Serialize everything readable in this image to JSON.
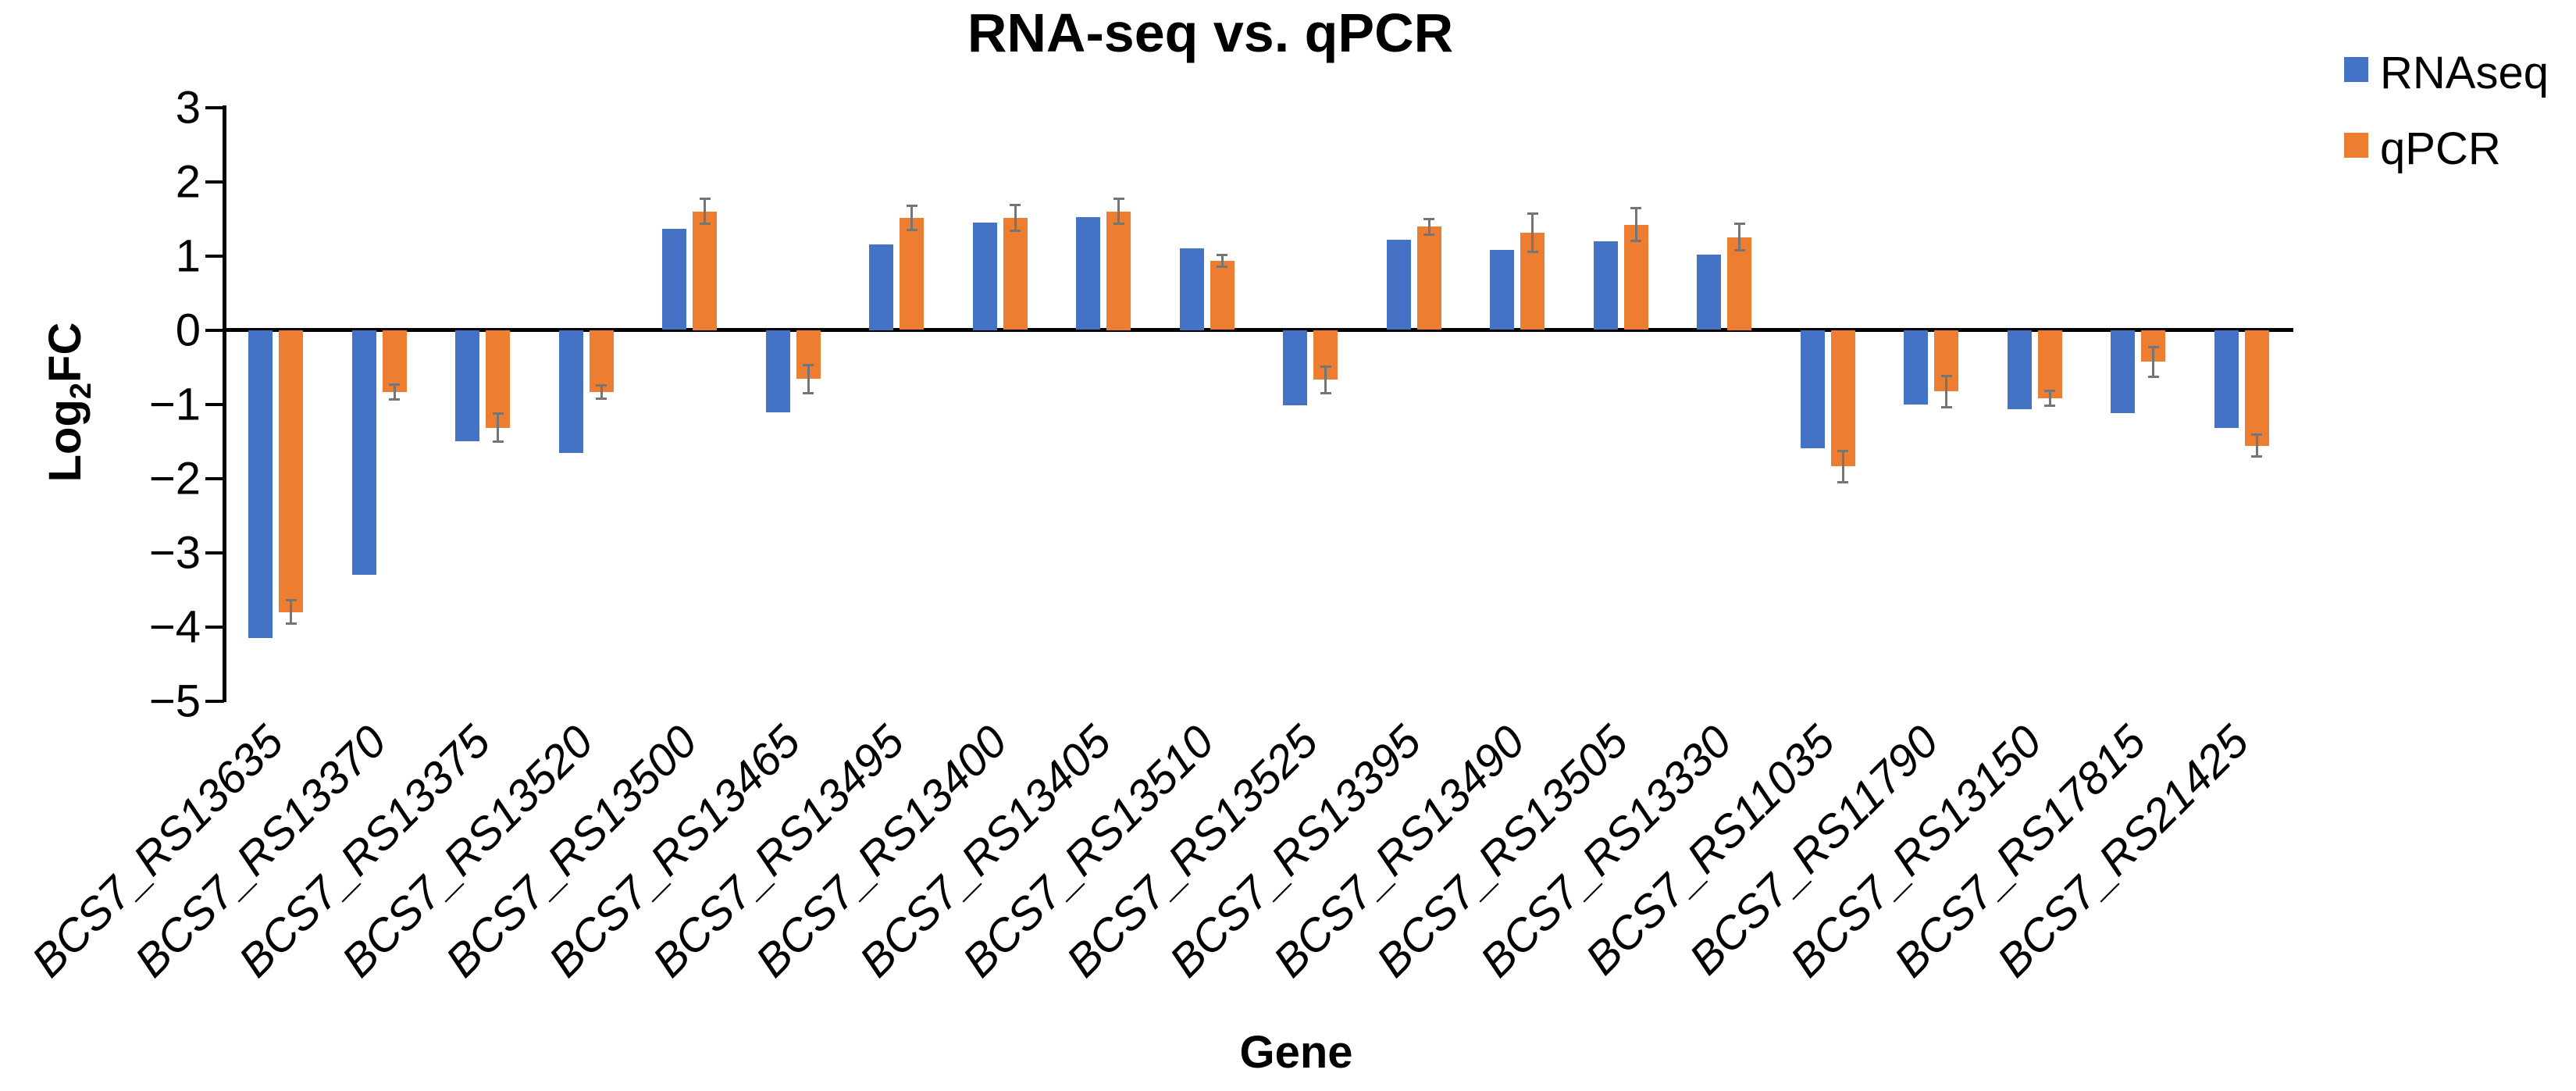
{
  "page": {
    "background": "#ffffff"
  },
  "chart_data": {
    "type": "bar",
    "title": "RNA-seq vs. qPCR",
    "xlabel": "Gene",
    "ylabel": {
      "text": "Log2FC",
      "main": "Log",
      "sub": "2",
      "tail": "FC"
    },
    "ylim": [
      -5,
      3
    ],
    "yticks": [
      3,
      2,
      1,
      0,
      -1,
      -2,
      -3,
      -4,
      -5
    ],
    "grid": false,
    "legend_position": "top-right",
    "axis_color": "#000000",
    "error_bar_color": "#757575",
    "categories": [
      "BCS7_RS13635",
      "BCS7_RS13370",
      "BCS7_RS13375",
      "BCS7_RS13520",
      "BCS7_RS13500",
      "BCS7_RS13465",
      "BCS7_RS13495",
      "BCS7_RS13400",
      "BCS7_RS13405",
      "BCS7_RS13510",
      "BCS7_RS13525",
      "BCS7_RS13395",
      "BCS7_RS13490",
      "BCS7_RS13505",
      "BCS7_RS13330",
      "BCS7_RS11035",
      "BCS7_RS11790",
      "BCS7_RS13150",
      "BCS7_RS17815",
      "BCS7_RS21425"
    ],
    "series": [
      {
        "name": "RNAseq",
        "color": "#4472C4",
        "values": [
          -4.15,
          -3.3,
          -1.5,
          -1.66,
          1.36,
          -1.11,
          1.15,
          1.45,
          1.52,
          1.1,
          -1.02,
          1.22,
          1.08,
          1.19,
          1.02,
          -1.59,
          -1.01,
          -1.07,
          -1.12,
          -1.32
        ]
      },
      {
        "name": "qPCR",
        "color": "#ED7D31",
        "values": [
          -3.8,
          -0.84,
          -1.32,
          -0.84,
          1.6,
          -0.66,
          1.51,
          1.51,
          1.6,
          0.93,
          -0.67,
          1.39,
          1.31,
          1.42,
          1.25,
          -1.84,
          -0.83,
          -0.92,
          -0.43,
          -1.56
        ],
        "errors": [
          0.16,
          0.1,
          0.19,
          0.09,
          0.17,
          0.19,
          0.16,
          0.17,
          0.17,
          0.08,
          0.18,
          0.11,
          0.26,
          0.22,
          0.18,
          0.21,
          0.21,
          0.1,
          0.2,
          0.15
        ]
      }
    ]
  }
}
